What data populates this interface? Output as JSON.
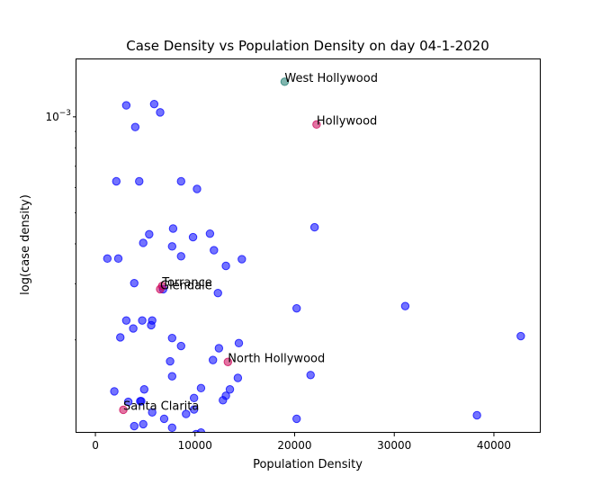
{
  "chart_data": {
    "type": "scatter",
    "title": "Case Density vs Population Density on day 04-1-2020",
    "xlabel": "Population Density",
    "ylabel": "log(case density)",
    "xlim": [
      -1900,
      44700
    ],
    "ylim_log10": [
      -3.99,
      -2.82
    ],
    "y_scale": "log",
    "x_ticks": [
      0,
      10000,
      20000,
      30000,
      40000
    ],
    "x_tick_labels": [
      "0",
      "10000",
      "20000",
      "30000",
      "40000"
    ],
    "y_major_ticks": [
      -3
    ],
    "y_major_tick_labels": [
      "10^-3"
    ],
    "grid": false,
    "colors": {
      "default": "#0000ff",
      "highlight": "#cc0055",
      "top": "#1a7a6e"
    },
    "series": [
      {
        "color": "default",
        "points": [
          [
            3100,
            -2.964
          ],
          [
            5900,
            -2.96
          ],
          [
            6500,
            -2.986
          ],
          [
            4000,
            -3.032
          ],
          [
            2100,
            -3.202
          ],
          [
            4400,
            -3.202
          ],
          [
            8600,
            -3.202
          ],
          [
            10200,
            -3.226
          ],
          [
            7800,
            -3.35
          ],
          [
            5400,
            -3.368
          ],
          [
            4800,
            -3.395
          ],
          [
            7700,
            -3.406
          ],
          [
            8600,
            -3.437
          ],
          [
            9800,
            -3.377
          ],
          [
            11500,
            -3.366
          ],
          [
            11900,
            -3.418
          ],
          [
            13100,
            -3.467
          ],
          [
            14700,
            -3.446
          ],
          [
            1200,
            -3.444
          ],
          [
            2300,
            -3.444
          ],
          [
            22000,
            -3.346
          ],
          [
            3900,
            -3.521
          ],
          [
            6800,
            -3.54
          ],
          [
            12300,
            -3.552
          ],
          [
            20200,
            -3.6
          ],
          [
            31100,
            -3.593
          ],
          [
            3100,
            -3.638
          ],
          [
            4700,
            -3.638
          ],
          [
            5700,
            -3.638
          ],
          [
            5600,
            -3.653
          ],
          [
            3800,
            -3.663
          ],
          [
            2500,
            -3.691
          ],
          [
            7700,
            -3.693
          ],
          [
            8600,
            -3.718
          ],
          [
            14400,
            -3.709
          ],
          [
            12400,
            -3.725
          ],
          [
            7500,
            -3.766
          ],
          [
            11800,
            -3.762
          ],
          [
            21600,
            -3.809
          ],
          [
            7700,
            -3.813
          ],
          [
            14300,
            -3.818
          ],
          [
            42700,
            -3.687
          ],
          [
            1900,
            -3.86
          ],
          [
            4900,
            -3.854
          ],
          [
            10600,
            -3.85
          ],
          [
            13500,
            -3.854
          ],
          [
            13100,
            -3.874
          ],
          [
            12800,
            -3.888
          ],
          [
            9900,
            -3.881
          ],
          [
            3300,
            -3.893
          ],
          [
            4500,
            -3.891
          ],
          [
            4600,
            -3.891
          ],
          [
            9900,
            -3.917
          ],
          [
            5700,
            -3.926
          ],
          [
            9100,
            -3.931
          ],
          [
            38300,
            -3.935
          ],
          [
            6900,
            -3.946
          ],
          [
            20200,
            -3.946
          ],
          [
            4800,
            -3.963
          ],
          [
            3900,
            -3.969
          ],
          [
            7700,
            -3.974
          ],
          [
            10600,
            -3.989
          ],
          [
            10100,
            -3.994
          ]
        ]
      },
      {
        "color": "highlight",
        "points": [
          [
            22200,
            -3.024
          ],
          [
            6700,
            -3.53
          ],
          [
            6500,
            -3.54
          ],
          [
            13300,
            -3.768
          ],
          [
            2800,
            -3.918
          ]
        ]
      },
      {
        "color": "top",
        "points": [
          [
            19000,
            -2.89
          ]
        ]
      }
    ],
    "annotations": [
      {
        "text": "West Hollywood",
        "x": 19000,
        "y": -2.89
      },
      {
        "text": "Hollywood",
        "x": 22200,
        "y": -3.024
      },
      {
        "text": "Torrance",
        "x": 6700,
        "y": -3.53
      },
      {
        "text": "Glendale",
        "x": 6500,
        "y": -3.54
      },
      {
        "text": "North Hollywood",
        "x": 13300,
        "y": -3.768
      },
      {
        "text": "Santa Clarita",
        "x": 2800,
        "y": -3.918
      }
    ]
  }
}
